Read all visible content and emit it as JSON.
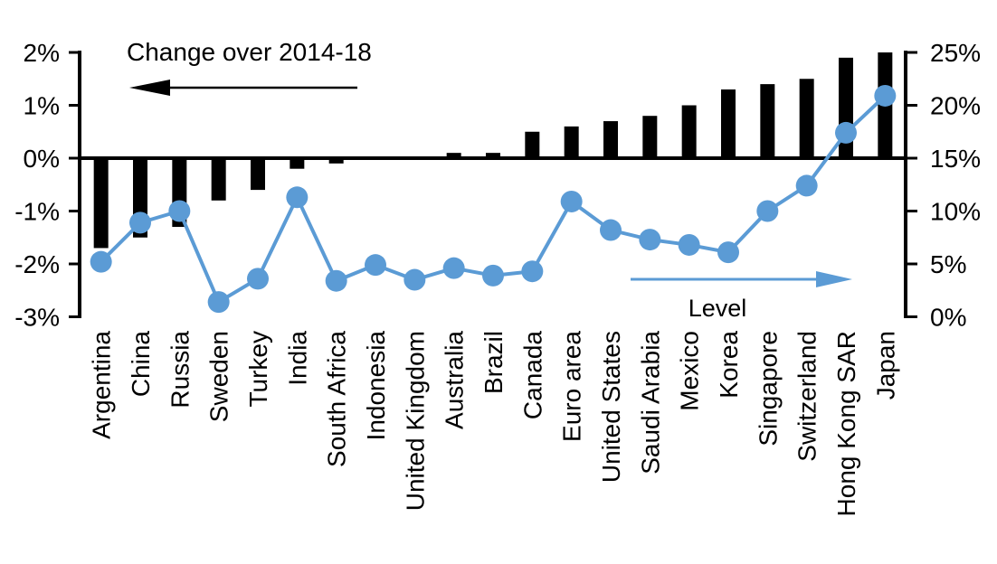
{
  "chart_data": {
    "type": "bar",
    "subtype": "dual-axis bar + line",
    "categories": [
      "Argentina",
      "China",
      "Russia",
      "Sweden",
      "Turkey",
      "India",
      "South Africa",
      "Indonesia",
      "United Kingdom",
      "Australia",
      "Brazil",
      "Canada",
      "Euro area",
      "United States",
      "Saudi Arabia",
      "Mexico",
      "Korea",
      "Singapore",
      "Switzerland",
      "Hong Kong SAR",
      "Japan"
    ],
    "series": [
      {
        "name": "Change over 2014-18",
        "type": "bar",
        "axis": "left",
        "color": "#000000",
        "values": [
          -1.7,
          -1.5,
          -1.3,
          -0.8,
          -0.6,
          -0.2,
          -0.1,
          0,
          0,
          0.1,
          0.1,
          0.5,
          0.6,
          0.7,
          0.8,
          1.0,
          1.3,
          1.4,
          1.5,
          1.9,
          2.0
        ]
      },
      {
        "name": "Level",
        "type": "line",
        "axis": "right",
        "color": "#5B9BD5",
        "values": [
          5.2,
          8.9,
          10.0,
          1.4,
          3.6,
          11.3,
          3.4,
          4.9,
          3.5,
          4.6,
          3.9,
          4.3,
          10.9,
          8.2,
          7.3,
          6.8,
          6.1,
          10.0,
          12.4,
          17.4,
          20.9
        ]
      }
    ],
    "left_axis": {
      "tick_labels": [
        "2%",
        "1%",
        "0%",
        "-1%",
        "-2%",
        "-3%"
      ],
      "tick_values": [
        2,
        1,
        0,
        -1,
        -2,
        -3
      ],
      "min": -3,
      "max": 2
    },
    "right_axis": {
      "tick_labels": [
        "25%",
        "20%",
        "15%",
        "10%",
        "5%",
        "0%"
      ],
      "tick_values": [
        25,
        20,
        15,
        10,
        5,
        0
      ],
      "min": 0,
      "max": 25
    },
    "annotations": {
      "change_label": "Change over 2014-18",
      "change_arrow_direction": "left",
      "level_label": "Level",
      "level_arrow_direction": "right"
    },
    "colors": {
      "bar": "#000000",
      "line": "#5B9BD5",
      "text": "#000000"
    },
    "grid": "off",
    "legend": "annotations-with-arrows"
  }
}
